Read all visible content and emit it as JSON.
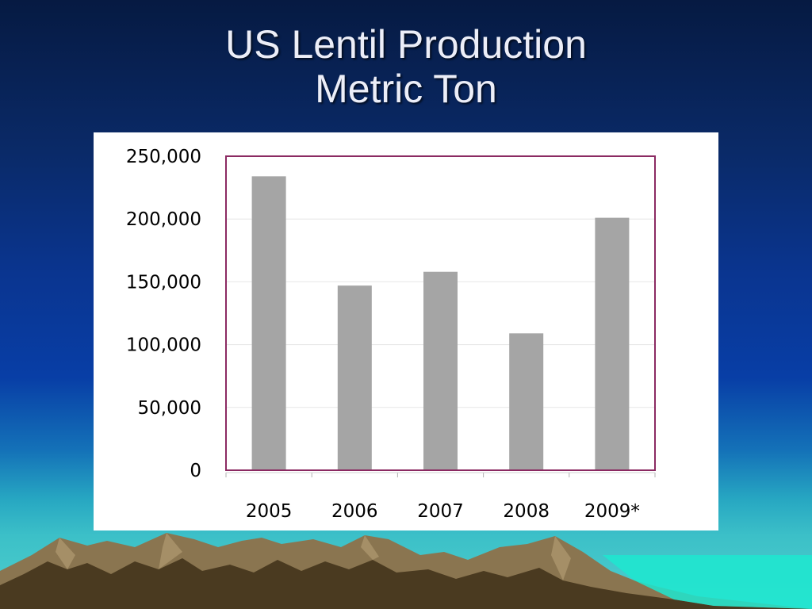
{
  "slide": {
    "title_line1": "US Lentil Production",
    "title_line2": "Metric Ton"
  },
  "colors": {
    "bar": "#a5a5a5",
    "plot_border": "#8b2a62",
    "gridline": "#e6e6e6",
    "mountain_dark": "#4a3a20",
    "mountain_light": "#8a7550"
  },
  "chart_data": {
    "type": "bar",
    "title": "",
    "xlabel": "",
    "ylabel": "",
    "categories": [
      "2005",
      "2006",
      "2007",
      "2008",
      "2009*"
    ],
    "values": [
      234000,
      147000,
      158000,
      109000,
      201000
    ],
    "ylim": [
      0,
      250000
    ],
    "yticks": [
      0,
      50000,
      100000,
      150000,
      200000,
      250000
    ],
    "ytick_labels": [
      "0",
      "50,000",
      "100,000",
      "150,000",
      "200,000",
      "250,000"
    ],
    "grid": true,
    "legend": "none"
  }
}
